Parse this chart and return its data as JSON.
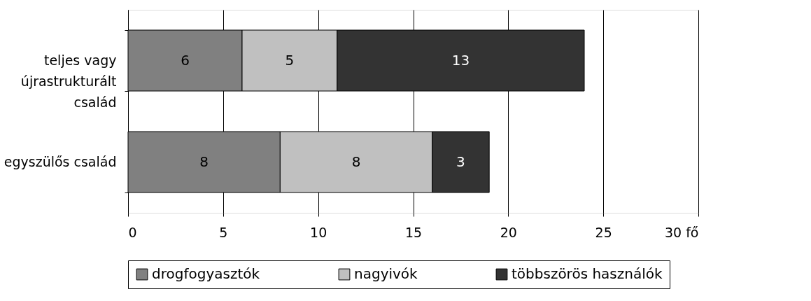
{
  "chart_data": {
    "type": "bar",
    "orientation": "horizontal",
    "stacked": true,
    "data_labels": true,
    "categories": [
      "teljes vagy újrastrukturált család",
      "egyszülős család"
    ],
    "series": [
      {
        "name": "drogfogyasztók",
        "color": "#808080",
        "values": [
          6,
          8
        ]
      },
      {
        "name": "nagyivók",
        "color": "#c0c0c0",
        "values": [
          5,
          8
        ]
      },
      {
        "name": "többszörös használók",
        "color": "#333333",
        "values": [
          13,
          3
        ]
      }
    ],
    "xlim": [
      0,
      30
    ],
    "xticks": [
      0,
      5,
      10,
      15,
      20,
      25,
      {
        "value": 30,
        "label": "30 fő"
      }
    ],
    "grid": "x",
    "legend": "bottom"
  }
}
